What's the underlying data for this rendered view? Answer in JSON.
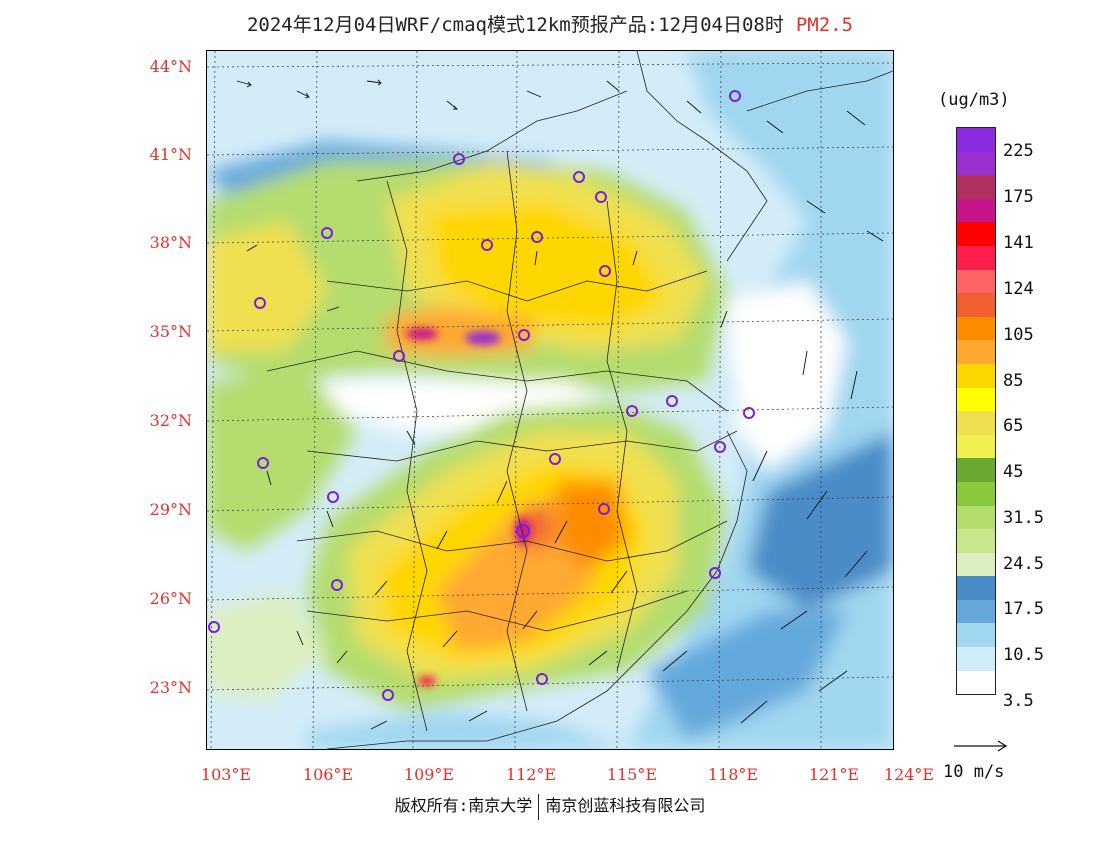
{
  "title": {
    "main": "2024年12月04日WRF/cmaq模式12km预报产品:12月04日08时",
    "pollutant": "PM2.5"
  },
  "map": {
    "lat_labels": [
      "44°N",
      "41°N",
      "38°N",
      "35°N",
      "32°N",
      "29°N",
      "26°N",
      "23°N"
    ],
    "lon_labels": [
      "103°E",
      "106°E",
      "109°E",
      "112°E",
      "115°E",
      "118°E",
      "121°E",
      "124°E"
    ]
  },
  "legend": {
    "unit": "(ug/m3)",
    "colors": [
      "#8b2be2",
      "#9b30d0",
      "#b03060",
      "#c8148a",
      "#ff0000",
      "#ff1f4a",
      "#ff6464",
      "#f06030",
      "#ff8c00",
      "#ffa830",
      "#ffd700",
      "#ffff00",
      "#f0e050",
      "#f0f050",
      "#6aa832",
      "#8ac83c",
      "#b4dc6e",
      "#c8e68c",
      "#dcefc0",
      "#4a8cc8",
      "#64a8dc",
      "#a0d6f0",
      "#d2edfa",
      "#ffffff"
    ],
    "labels": [
      "225",
      "175",
      "141",
      "124",
      "105",
      "85",
      "65",
      "45",
      "31.5",
      "24.5",
      "17.5",
      "10.5",
      "3.5"
    ]
  },
  "wind_reference": {
    "label": "10 m/s"
  },
  "footer": {
    "left": "版权所有:南京大学",
    "right": "南京创蓝科技有限公司"
  }
}
